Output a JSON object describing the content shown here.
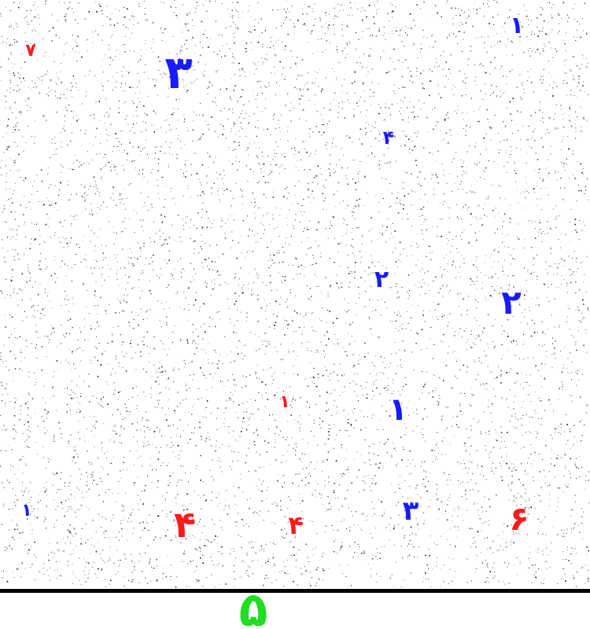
{
  "colors": {
    "blue": "#1a1aff",
    "red": "#ff1a1a",
    "green": "#22dd22",
    "noise": "#000000",
    "line": "#000000",
    "background": "#ffffff"
  },
  "digits": [
    {
      "text": "١",
      "color": "blue"
    },
    {
      "text": "٧",
      "color": "red"
    },
    {
      "text": "٣",
      "color": "blue"
    },
    {
      "text": "۴",
      "color": "blue"
    },
    {
      "text": "٢",
      "color": "blue"
    },
    {
      "text": "٢",
      "color": "blue"
    },
    {
      "text": "١",
      "color": "red"
    },
    {
      "text": "١",
      "color": "blue"
    },
    {
      "text": "١",
      "color": "blue"
    },
    {
      "text": "۴",
      "color": "red"
    },
    {
      "text": "۴",
      "color": "red"
    },
    {
      "text": "٣",
      "color": "blue"
    },
    {
      "text": "۶",
      "color": "red"
    }
  ],
  "answer": {
    "text": "۵",
    "color": "green"
  }
}
